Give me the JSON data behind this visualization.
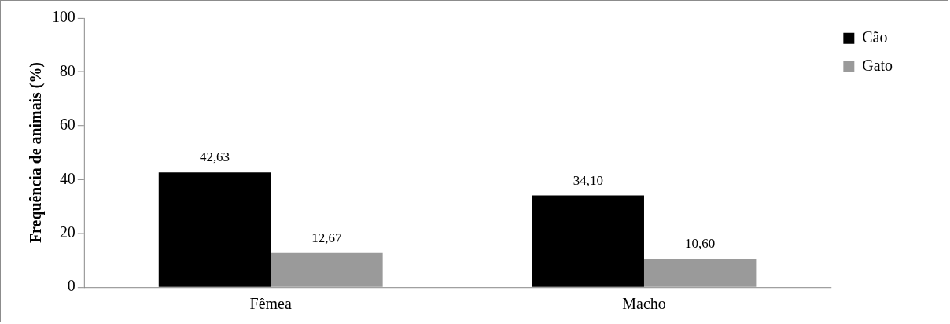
{
  "chart_data": {
    "type": "bar",
    "ylabel": "Frequência de animais (%)",
    "categories": [
      "Fêmea",
      "Macho"
    ],
    "series": [
      {
        "name": "Cão",
        "color": "#000000",
        "values": [
          42.63,
          34.1
        ],
        "value_labels": [
          "42,63",
          "34,10"
        ]
      },
      {
        "name": "Gato",
        "color": "#9a9a9a",
        "values": [
          12.67,
          10.6
        ],
        "value_labels": [
          "12,67",
          "10,60"
        ]
      }
    ],
    "ylim": [
      0,
      100
    ],
    "yticks": [
      0,
      20,
      40,
      60,
      80,
      100
    ],
    "grid": false,
    "legend": "top right"
  }
}
